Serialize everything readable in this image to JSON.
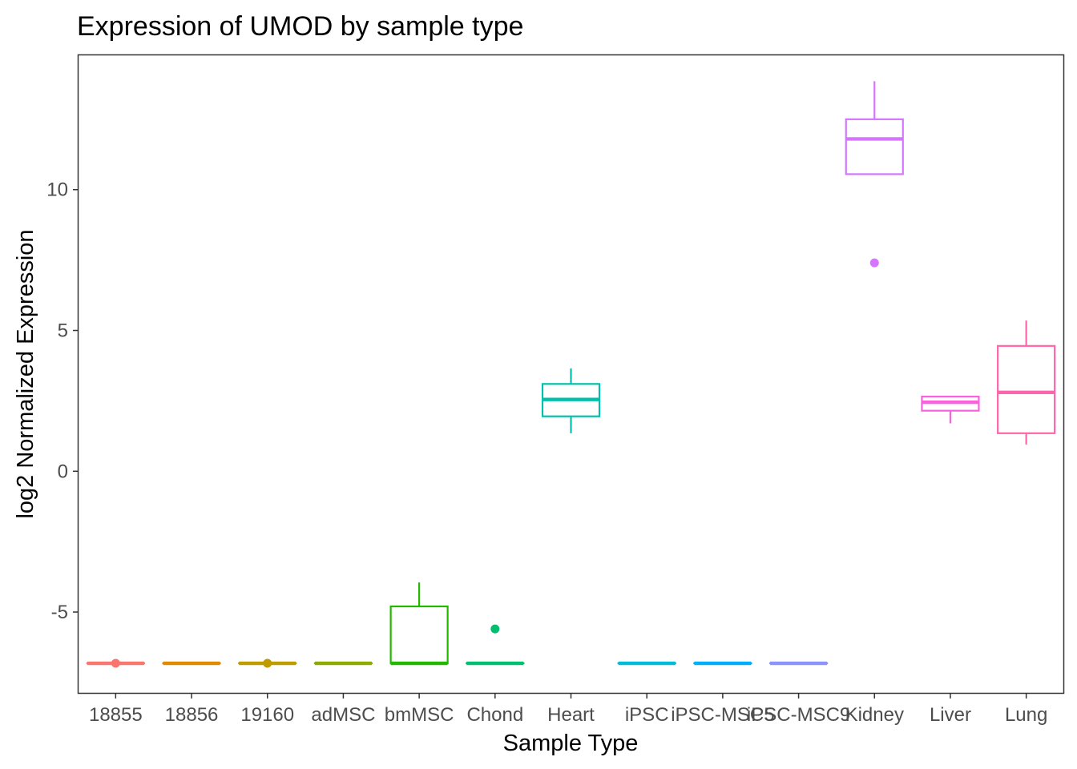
{
  "chart_data": {
    "type": "boxplot",
    "title": "Expression of UMOD by sample type",
    "xlabel": "Sample Type",
    "ylabel": "log2 Normalized Expression",
    "ylim": [
      -7.9,
      14.8
    ],
    "yticks": [
      -5,
      0,
      5,
      10
    ],
    "ytick_labels": [
      "-5",
      "0",
      "5",
      "10"
    ],
    "grid": false,
    "legend": "none",
    "categories": [
      "18855",
      "18856",
      "19160",
      "adMSC",
      "bmMSC",
      "Chond",
      "Heart",
      "iPSC",
      "iPSC-MSC5",
      "iPSC-MSC9",
      "Kidney",
      "Liver",
      "Lung"
    ],
    "series": [
      {
        "category": "18855",
        "color": "#F8766D",
        "min": -6.82,
        "q1": -6.82,
        "median": -6.82,
        "q3": -6.82,
        "max": -6.82,
        "outliers": [
          -6.82
        ]
      },
      {
        "category": "18856",
        "color": "#E18A00",
        "min": -6.82,
        "q1": -6.82,
        "median": -6.82,
        "q3": -6.82,
        "max": -6.82,
        "outliers": []
      },
      {
        "category": "19160",
        "color": "#BE9C00",
        "min": -6.82,
        "q1": -6.82,
        "median": -6.82,
        "q3": -6.82,
        "max": -6.82,
        "outliers": [
          -6.82
        ]
      },
      {
        "category": "adMSC",
        "color": "#8CAB00",
        "min": -6.82,
        "q1": -6.82,
        "median": -6.82,
        "q3": -6.82,
        "max": -6.82,
        "outliers": []
      },
      {
        "category": "bmMSC",
        "color": "#24B700",
        "min": -6.82,
        "q1": -6.82,
        "median": -6.82,
        "q3": -4.8,
        "max": -3.95,
        "outliers": []
      },
      {
        "category": "Chond",
        "color": "#00BE70",
        "min": -6.82,
        "q1": -6.82,
        "median": -6.82,
        "q3": -6.82,
        "max": -6.82,
        "outliers": [
          -5.6
        ]
      },
      {
        "category": "Heart",
        "color": "#00C1AB",
        "min": 1.35,
        "q1": 1.95,
        "median": 2.55,
        "q3": 3.1,
        "max": 3.65,
        "outliers": []
      },
      {
        "category": "iPSC",
        "color": "#00BBDA",
        "min": -6.82,
        "q1": -6.82,
        "median": -6.82,
        "q3": -6.82,
        "max": -6.82,
        "outliers": []
      },
      {
        "category": "iPSC-MSC5",
        "color": "#00ACFC",
        "min": -6.82,
        "q1": -6.82,
        "median": -6.82,
        "q3": -6.82,
        "max": -6.82,
        "outliers": []
      },
      {
        "category": "iPSC-MSC9",
        "color": "#8B93FF",
        "min": -6.82,
        "q1": -6.82,
        "median": -6.82,
        "q3": -6.82,
        "max": -6.82,
        "outliers": []
      },
      {
        "category": "Kidney",
        "color": "#D575FE",
        "min": 10.55,
        "q1": 10.55,
        "median": 11.8,
        "q3": 12.5,
        "max": 13.85,
        "outliers": [
          7.4
        ]
      },
      {
        "category": "Liver",
        "color": "#F962DD",
        "min": 1.7,
        "q1": 2.15,
        "median": 2.45,
        "q3": 2.65,
        "max": 2.65,
        "outliers": []
      },
      {
        "category": "Lung",
        "color": "#FF65AC",
        "min": 0.95,
        "q1": 1.35,
        "median": 2.8,
        "q3": 4.45,
        "max": 5.35,
        "outliers": []
      }
    ]
  }
}
